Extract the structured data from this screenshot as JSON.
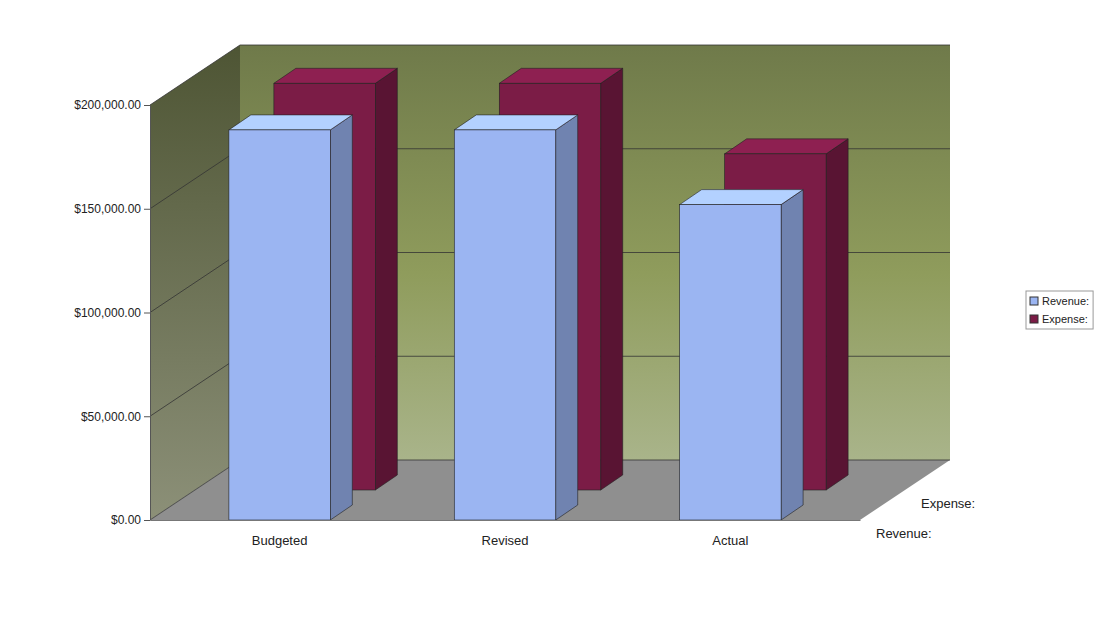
{
  "chart_data": {
    "type": "bar",
    "categories": [
      "Budgeted",
      "Revised",
      "Actual"
    ],
    "series": [
      {
        "name": "Revenue:",
        "color": "#9bb5f2",
        "values": [
          188000,
          188000,
          152000
        ]
      },
      {
        "name": "Expense:",
        "color": "#7b1c46",
        "values": [
          196000,
          196000,
          162000
        ]
      }
    ],
    "ylim": [
      0,
      200000
    ],
    "yticks": [
      {
        "value": 0,
        "label": "$0.00"
      },
      {
        "value": 50000,
        "label": "$50,000.00"
      },
      {
        "value": 100000,
        "label": "$100,000.00"
      },
      {
        "value": 150000,
        "label": "$150,000.00"
      },
      {
        "value": 200000,
        "label": "$200,000.00"
      }
    ],
    "grid": true,
    "legend": "right"
  }
}
